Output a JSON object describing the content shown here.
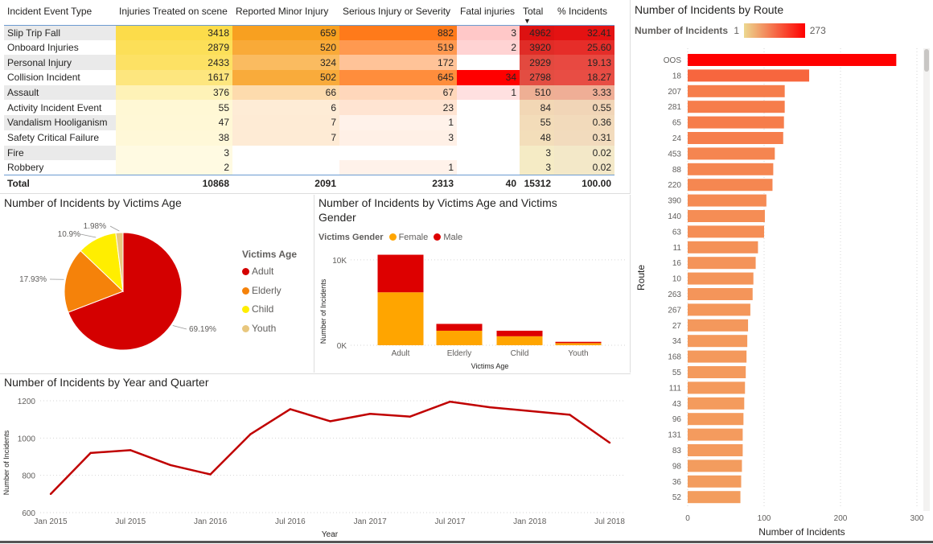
{
  "colors": {
    "adult": "#d40000",
    "elderly": "#f5820a",
    "child": "#ffee00",
    "youth": "#e8c77e",
    "female": "#ffa500",
    "male": "#dd0000",
    "line": "#c00000",
    "grad_low": "#ecd890",
    "grad_high": "#ff0000",
    "table_low": "#fff7ef",
    "table_high": "#ff0000"
  },
  "matrix": {
    "headers": [
      "Incident Event Type",
      "Injuries Treated on scene",
      "Reported Minor Injury",
      "Serious Injury or Severity",
      "Fatal injuries",
      "Total",
      "% Incidents"
    ],
    "sort_icon": "sort-descending-icon",
    "rows": [
      {
        "type": "Slip Trip Fall",
        "treated": "3418",
        "minor": "659",
        "serious": "882",
        "fatal": "3",
        "total": "4962",
        "pct": "32.41"
      },
      {
        "type": "Onboard Injuries",
        "treated": "2879",
        "minor": "520",
        "serious": "519",
        "fatal": "2",
        "total": "3920",
        "pct": "25.60"
      },
      {
        "type": "Personal Injury",
        "treated": "2433",
        "minor": "324",
        "serious": "172",
        "fatal": "",
        "total": "2929",
        "pct": "19.13"
      },
      {
        "type": "Collision Incident",
        "treated": "1617",
        "minor": "502",
        "serious": "645",
        "fatal": "34",
        "total": "2798",
        "pct": "18.27"
      },
      {
        "type": "Assault",
        "treated": "376",
        "minor": "66",
        "serious": "67",
        "fatal": "1",
        "total": "510",
        "pct": "3.33"
      },
      {
        "type": "Activity Incident Event",
        "treated": "55",
        "minor": "6",
        "serious": "23",
        "fatal": "",
        "total": "84",
        "pct": "0.55"
      },
      {
        "type": "Vandalism Hooliganism",
        "treated": "47",
        "minor": "7",
        "serious": "1",
        "fatal": "",
        "total": "55",
        "pct": "0.36"
      },
      {
        "type": "Safety Critical Failure",
        "treated": "38",
        "minor": "7",
        "serious": "3",
        "fatal": "",
        "total": "48",
        "pct": "0.31"
      },
      {
        "type": "Fire",
        "treated": "3",
        "minor": "",
        "serious": "",
        "fatal": "",
        "total": "3",
        "pct": "0.02"
      },
      {
        "type": "Robbery",
        "treated": "2",
        "minor": "",
        "serious": "1",
        "fatal": "",
        "total": "3",
        "pct": "0.02"
      }
    ],
    "total": {
      "type": "Total",
      "treated": "10868",
      "minor": "2091",
      "serious": "2313",
      "fatal": "40",
      "total": "15312",
      "pct": "100.00"
    }
  },
  "route_chart": {
    "title": "Number of Incidents by Route",
    "legend_label": "Number of Incidents",
    "legend_min": "1",
    "legend_max": "273",
    "ylabel": "Route",
    "xlabel": "Number of Incidents"
  },
  "pie": {
    "title": "Number of Incidents by Victims Age",
    "legend_title": "Victims Age"
  },
  "stack": {
    "title_line1": "Number of Incidents by Victims Age and Victims",
    "title_line2": "Gender",
    "legend_title": "Victims Gender",
    "legend_female": "Female",
    "legend_male": "Male",
    "ylabel": "Number of Incidents",
    "xlabel": "Victims Age"
  },
  "line": {
    "title": "Number of Incidents by Year and Quarter",
    "ylabel": "Number of Incidents",
    "xlabel": "Year"
  },
  "chart_data": [
    {
      "type": "bar",
      "orientation": "horizontal",
      "title": "Number of Incidents by Route",
      "xlabel": "Number of Incidents",
      "ylabel": "Route",
      "xlim": [
        0,
        300
      ],
      "x_ticks": [
        0,
        100,
        200,
        300
      ],
      "categories": [
        "OOS",
        "18",
        "207",
        "281",
        "65",
        "24",
        "453",
        "88",
        "220",
        "390",
        "140",
        "63",
        "11",
        "16",
        "10",
        "263",
        "267",
        "27",
        "34",
        "168",
        "55",
        "111",
        "43",
        "96",
        "131",
        "83",
        "98",
        "36",
        "52"
      ],
      "values": [
        273,
        159,
        127,
        127,
        126,
        125,
        114,
        112,
        111,
        103,
        101,
        100,
        92,
        89,
        86,
        85,
        82,
        79,
        78,
        77,
        76,
        75,
        74,
        73,
        72,
        72,
        71,
        70,
        69
      ],
      "color_scale": {
        "min": 1,
        "max": 273
      }
    },
    {
      "type": "pie",
      "title": "Number of Incidents by Victims Age",
      "labels": [
        "Adult",
        "Elderly",
        "Child",
        "Youth"
      ],
      "values": [
        69.19,
        17.93,
        10.9,
        1.98
      ],
      "value_labels": [
        "69.19%",
        "17.93%",
        "10.9%",
        "1.98%"
      ],
      "legend": "right"
    },
    {
      "type": "bar",
      "stacked": true,
      "title": "Number of Incidents by Victims Age and Victims Gender",
      "categories": [
        "Adult",
        "Elderly",
        "Child",
        "Youth"
      ],
      "series": [
        {
          "name": "Female",
          "values": [
            6200,
            1700,
            1050,
            250
          ]
        },
        {
          "name": "Male",
          "values": [
            4400,
            800,
            650,
            150
          ]
        }
      ],
      "y_ticks": [
        "0K",
        "10K"
      ],
      "ylim": [
        0,
        11500
      ],
      "xlabel": "Victims Age",
      "ylabel": "Number of Incidents",
      "legend": "top-left"
    },
    {
      "type": "line",
      "title": "Number of Incidents by Year and Quarter",
      "x": [
        "2015-01",
        "2015-04",
        "2015-07",
        "2015-10",
        "2016-01",
        "2016-04",
        "2016-07",
        "2016-10",
        "2017-01",
        "2017-04",
        "2017-07",
        "2017-10",
        "2018-01",
        "2018-04",
        "2018-07"
      ],
      "x_tick_labels": [
        "Jan 2015",
        "Jul 2015",
        "Jan 2016",
        "Jul 2016",
        "Jan 2017",
        "Jul 2017",
        "Jan 2018",
        "Jul 2018"
      ],
      "values": [
        700,
        920,
        935,
        855,
        805,
        1020,
        1155,
        1090,
        1130,
        1115,
        1195,
        1165,
        1145,
        1125,
        975
      ],
      "ylim": [
        600,
        1200
      ],
      "y_ticks": [
        600,
        800,
        1000,
        1200
      ],
      "xlabel": "Year",
      "ylabel": "Number of Incidents"
    }
  ]
}
